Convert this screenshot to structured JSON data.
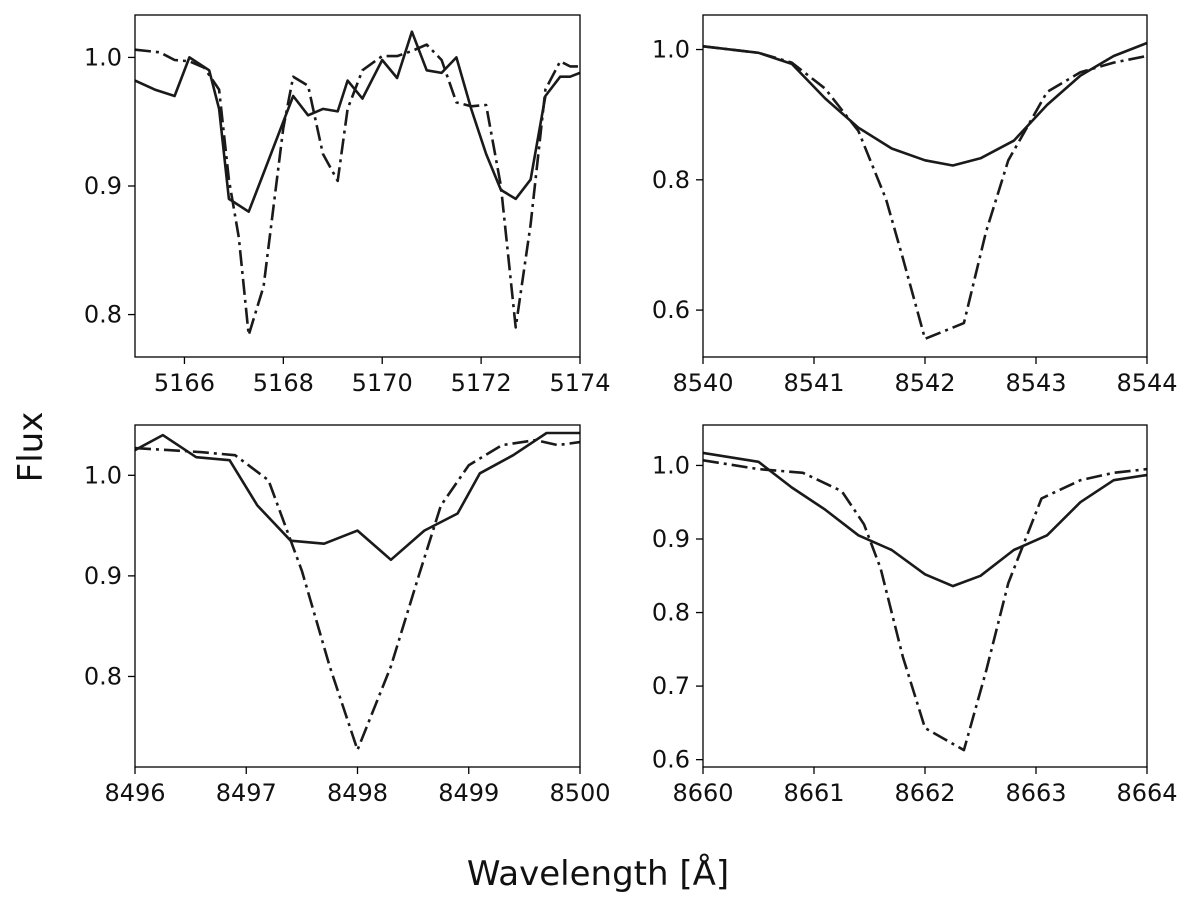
{
  "figure": {
    "xlabel": "Wavelength [Å]",
    "ylabel": "Flux"
  },
  "styles": {
    "line_color": "#1a1a1a",
    "series_dash": [
      "",
      "16 5 3 5"
    ]
  },
  "chart_data": [
    {
      "type": "line",
      "xlim": [
        5165,
        5174
      ],
      "ylim": [
        0.767,
        1.033
      ],
      "xticks": [
        5166,
        5168,
        5170,
        5172,
        5174
      ],
      "yticks": [
        0.8,
        0.9,
        1.0
      ],
      "xtick_labels": [
        "5166",
        "5168",
        "5170",
        "5172",
        "5174"
      ],
      "ytick_labels": [
        "0.8",
        "0.9",
        "1.0"
      ],
      "series": [
        {
          "style": "solid",
          "x": [
            5165,
            5165.4,
            5165.8,
            5166.1,
            5166.5,
            5166.7,
            5166.9,
            5167.3,
            5167.6,
            5168,
            5168.2,
            5168.5,
            5168.8,
            5169.1,
            5169.3,
            5169.6,
            5170,
            5170.3,
            5170.6,
            5170.9,
            5171.2,
            5171.5,
            5171.8,
            5172.1,
            5172.4,
            5172.7,
            5173,
            5173.3,
            5173.6,
            5173.8,
            5174
          ],
          "y": [
            0.982,
            0.975,
            0.97,
            1.0,
            0.99,
            0.96,
            0.89,
            0.88,
            0.91,
            0.95,
            0.97,
            0.955,
            0.96,
            0.958,
            0.982,
            0.968,
            0.998,
            0.984,
            1.02,
            0.99,
            0.988,
            1.0,
            0.96,
            0.925,
            0.897,
            0.89,
            0.905,
            0.97,
            0.985,
            0.985,
            0.988
          ]
        },
        {
          "style": "dashdot",
          "x": [
            5165,
            5165.5,
            5165.8,
            5166.1,
            5166.4,
            5166.7,
            5166.9,
            5167.1,
            5167.3,
            5167.6,
            5168,
            5168.2,
            5168.5,
            5168.8,
            5169.1,
            5169.3,
            5169.6,
            5170,
            5170.3,
            5170.6,
            5170.9,
            5171.2,
            5171.5,
            5171.8,
            5172.1,
            5172.4,
            5172.7,
            5173,
            5173.3,
            5173.6,
            5173.8,
            5174
          ],
          "y": [
            1.006,
            1.004,
            0.998,
            0.997,
            0.992,
            0.975,
            0.905,
            0.86,
            0.784,
            0.822,
            0.945,
            0.985,
            0.978,
            0.925,
            0.904,
            0.96,
            0.99,
            1.001,
            1.001,
            1.005,
            1.01,
            0.998,
            0.965,
            0.962,
            0.963,
            0.9,
            0.79,
            0.87,
            0.975,
            0.997,
            0.993,
            0.993
          ]
        }
      ]
    },
    {
      "type": "line",
      "xlim": [
        8540,
        8544
      ],
      "ylim": [
        0.528,
        1.053
      ],
      "xticks": [
        8540,
        8541,
        8542,
        8543,
        8544
      ],
      "yticks": [
        0.6,
        0.8,
        1.0
      ],
      "xtick_labels": [
        "8540",
        "8541",
        "8542",
        "8543",
        "8544"
      ],
      "ytick_labels": [
        "0.6",
        "0.8",
        "1.0"
      ],
      "series": [
        {
          "style": "solid",
          "x": [
            8540,
            8540.5,
            8540.8,
            8541.1,
            8541.4,
            8541.7,
            8542,
            8542.25,
            8542.5,
            8542.8,
            8543.1,
            8543.4,
            8543.7,
            8544
          ],
          "y": [
            1.005,
            0.995,
            0.978,
            0.925,
            0.88,
            0.848,
            0.83,
            0.822,
            0.833,
            0.86,
            0.915,
            0.96,
            0.99,
            1.01
          ]
        },
        {
          "style": "dashdot",
          "x": [
            8540,
            8540.5,
            8540.8,
            8541.1,
            8541.4,
            8541.65,
            8541.8,
            8542,
            8542.35,
            8542.55,
            8542.75,
            8543.1,
            8543.4,
            8543.7,
            8544
          ],
          "y": [
            1.005,
            0.995,
            0.98,
            0.94,
            0.875,
            0.77,
            0.68,
            0.556,
            0.58,
            0.72,
            0.83,
            0.935,
            0.965,
            0.98,
            0.99
          ]
        }
      ]
    },
    {
      "type": "line",
      "xlim": [
        8496,
        8500
      ],
      "ylim": [
        0.71,
        1.05
      ],
      "xticks": [
        8496,
        8497,
        8498,
        8499,
        8500
      ],
      "yticks": [
        0.8,
        0.9,
        1.0
      ],
      "xtick_labels": [
        "8496",
        "8497",
        "8498",
        "8499",
        "8500"
      ],
      "ytick_labels": [
        "0.8",
        "0.9",
        "1.0"
      ],
      "series": [
        {
          "style": "solid",
          "x": [
            8496,
            8496.25,
            8496.55,
            8496.85,
            8497.1,
            8497.4,
            8497.7,
            8498,
            8498.3,
            8498.6,
            8498.9,
            8499.1,
            8499.4,
            8499.7,
            8500
          ],
          "y": [
            1.025,
            1.04,
            1.018,
            1.015,
            0.97,
            0.935,
            0.932,
            0.945,
            0.916,
            0.945,
            0.962,
            1.002,
            1.02,
            1.042,
            1.042
          ]
        },
        {
          "style": "dashdot",
          "x": [
            8496,
            8496.3,
            8496.6,
            8496.9,
            8497.2,
            8497.5,
            8497.75,
            8498,
            8498.3,
            8498.55,
            8498.75,
            8499,
            8499.3,
            8499.6,
            8499.8,
            8500
          ],
          "y": [
            1.027,
            1.025,
            1.023,
            1.02,
            0.995,
            0.905,
            0.81,
            0.727,
            0.81,
            0.9,
            0.97,
            1.01,
            1.03,
            1.035,
            1.03,
            1.033
          ]
        }
      ]
    },
    {
      "type": "line",
      "xlim": [
        8660,
        8664
      ],
      "ylim": [
        0.59,
        1.055
      ],
      "xticks": [
        8660,
        8661,
        8662,
        8663,
        8664
      ],
      "yticks": [
        0.6,
        0.7,
        0.8,
        0.9,
        1.0
      ],
      "xtick_labels": [
        "8660",
        "8661",
        "8662",
        "8663",
        "8664"
      ],
      "ytick_labels": [
        "0.6",
        "0.7",
        "0.8",
        "0.9",
        "1.0"
      ],
      "series": [
        {
          "style": "solid",
          "x": [
            8660,
            8660.5,
            8660.8,
            8661.1,
            8661.4,
            8661.7,
            8662,
            8662.25,
            8662.5,
            8662.8,
            8663.1,
            8663.4,
            8663.7,
            8664
          ],
          "y": [
            1.017,
            1.005,
            0.97,
            0.94,
            0.905,
            0.885,
            0.852,
            0.836,
            0.85,
            0.885,
            0.905,
            0.95,
            0.98,
            0.987
          ]
        },
        {
          "style": "dashdot",
          "x": [
            8660,
            8660.5,
            8660.9,
            8661.25,
            8661.45,
            8661.6,
            8661.8,
            8662,
            8662.35,
            8662.55,
            8662.75,
            8663.05,
            8663.4,
            8663.7,
            8664
          ],
          "y": [
            1.007,
            0.995,
            0.99,
            0.965,
            0.92,
            0.86,
            0.74,
            0.643,
            0.613,
            0.72,
            0.84,
            0.955,
            0.98,
            0.99,
            0.995
          ]
        }
      ]
    }
  ]
}
